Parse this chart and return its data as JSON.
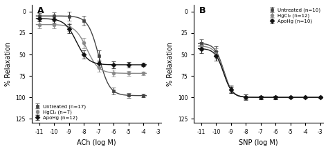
{
  "panel_A": {
    "title": "A",
    "xlabel": "ACh (log M)",
    "ylabel": "% Relaxation",
    "xticks": [
      -11,
      -10,
      -9,
      -8,
      -7,
      -6,
      -5,
      -4,
      -3
    ],
    "ytick_vals": [
      0,
      25,
      50,
      75,
      100,
      125
    ],
    "ylim": [
      130,
      -8
    ],
    "xlim": [
      -11.5,
      -2.8
    ],
    "series": [
      {
        "label": "Untreated (n=17)",
        "marker": "s",
        "color": "#444444",
        "ec50_log": -7.0,
        "top": 98,
        "bottom": 5,
        "hill": 1.2,
        "x_pts": [
          -11,
          -10,
          -9,
          -8,
          -7,
          -6,
          -5,
          -4
        ],
        "errors": [
          3,
          4,
          5,
          6,
          6,
          4,
          3,
          2
        ]
      },
      {
        "label": "HgCl₂ (n=7)",
        "marker": "o",
        "color": "#888888",
        "ec50_log": -7.8,
        "top": 72,
        "bottom": 15,
        "hill": 1.1,
        "x_pts": [
          -11,
          -10,
          -9,
          -8,
          -7,
          -6,
          -5,
          -4
        ],
        "errors": [
          4,
          4,
          5,
          6,
          5,
          4,
          3,
          2
        ]
      },
      {
        "label": "ApoHg (n=12)",
        "marker": "D",
        "color": "#111111",
        "ec50_log": -8.5,
        "top": 62,
        "bottom": 8,
        "hill": 1.1,
        "x_pts": [
          -11,
          -10,
          -9,
          -8,
          -7,
          -6,
          -5,
          -4
        ],
        "errors": [
          3,
          4,
          5,
          5,
          4,
          4,
          3,
          2
        ]
      }
    ],
    "legend_loc": "lower left",
    "legend_bbox": null
  },
  "panel_B": {
    "title": "B",
    "xlabel": "SNP (log M)",
    "ylabel": "% Relaxation",
    "xticks": [
      -11,
      -10,
      -9,
      -8,
      -7,
      -6,
      -5,
      -4,
      -3
    ],
    "ytick_vals": [
      0,
      25,
      50,
      75,
      100,
      125
    ],
    "ylim": [
      130,
      -8
    ],
    "xlim": [
      -11.5,
      -2.8
    ],
    "series": [
      {
        "label": "Untreated (n=10)",
        "marker": "s",
        "color": "#444444",
        "ec50_log": -9.5,
        "top": 100,
        "bottom": 37,
        "hill": 1.5,
        "x_pts": [
          -11,
          -10,
          -9,
          -8,
          -7,
          -6,
          -5,
          -4,
          -3
        ],
        "errors": [
          5,
          6,
          4,
          3,
          2,
          2,
          1,
          1,
          1
        ]
      },
      {
        "label": "HgCl₂ (n=12)",
        "marker": "o",
        "color": "#888888",
        "ec50_log": -9.5,
        "top": 100,
        "bottom": 40,
        "hill": 1.5,
        "x_pts": [
          -11,
          -10,
          -9,
          -8,
          -7,
          -6,
          -5,
          -4,
          -3
        ],
        "errors": [
          5,
          6,
          4,
          3,
          2,
          2,
          1,
          1,
          1
        ]
      },
      {
        "label": "ApoHg (n=10)",
        "marker": "D",
        "color": "#111111",
        "ec50_log": -9.5,
        "top": 100,
        "bottom": 43,
        "hill": 1.5,
        "x_pts": [
          -11,
          -10,
          -9,
          -8,
          -7,
          -6,
          -5,
          -4,
          -3
        ],
        "errors": [
          5,
          6,
          4,
          3,
          2,
          2,
          1,
          1,
          1
        ]
      }
    ],
    "legend_loc": "upper right",
    "legend_bbox": null
  },
  "background_color": "#ffffff",
  "errorbar_capsize": 2,
  "markersize": 3.5,
  "linewidth": 1.0
}
